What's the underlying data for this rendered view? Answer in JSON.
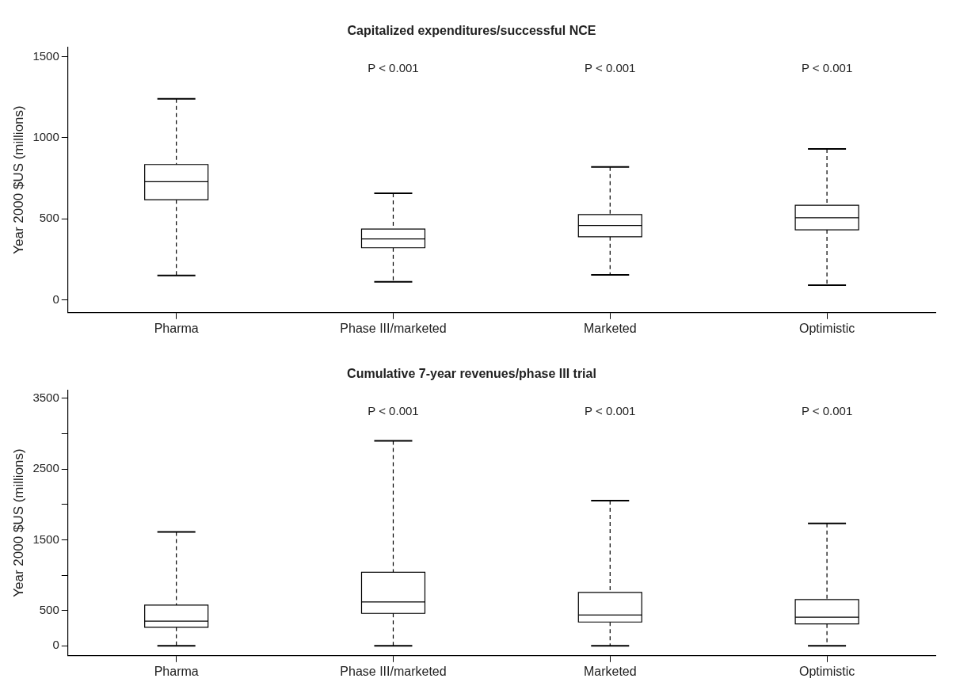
{
  "chart_data": [
    {
      "type": "box",
      "title": "Capitalized expenditures/successful NCE",
      "ylabel": "Year 2000 $US (millions)",
      "categories": [
        "Pharma",
        "Phase III/marketed",
        "Marketed",
        "Optimistic"
      ],
      "boxes": [
        {
          "low": 150,
          "q1": 617,
          "median": 728,
          "q3": 834,
          "high": 1240
        },
        {
          "low": 111,
          "q1": 321,
          "median": 375,
          "q3": 436,
          "high": 657
        },
        {
          "low": 153,
          "q1": 389,
          "median": 458,
          "q3": 526,
          "high": 819
        },
        {
          "low": 90,
          "q1": 432,
          "median": 506,
          "q3": 583,
          "high": 931
        }
      ],
      "ylim": [
        -80,
        1560
      ],
      "yticks": [
        0,
        500,
        1000,
        1500
      ],
      "annotations": [
        "P < 0.001",
        "P < 0.001",
        "P < 0.001"
      ]
    },
    {
      "type": "box",
      "title": "Cumulative 7-year revenues/phase III trial",
      "ylabel": "Year 2000 $US (millions)",
      "categories": [
        "Pharma",
        "Phase III/marketed",
        "Marketed",
        "Optimistic"
      ],
      "boxes": [
        {
          "low": 0,
          "q1": 263,
          "median": 349,
          "q3": 576,
          "high": 1610
        },
        {
          "low": 0,
          "q1": 460,
          "median": 621,
          "q3": 1042,
          "high": 2900
        },
        {
          "low": 0,
          "q1": 337,
          "median": 437,
          "q3": 755,
          "high": 2055
        },
        {
          "low": 0,
          "q1": 310,
          "median": 406,
          "q3": 655,
          "high": 1733
        }
      ],
      "ylim": [
        -140,
        3620
      ],
      "yticks": [
        0,
        500,
        {
          "value": 1000,
          "label": null
        },
        1500,
        {
          "value": 2000,
          "label": null
        },
        2500,
        {
          "value": 3000,
          "label": null
        },
        3500
      ],
      "annotations": [
        "P < 0.001",
        "P < 0.001",
        "P < 0.001"
      ]
    }
  ]
}
